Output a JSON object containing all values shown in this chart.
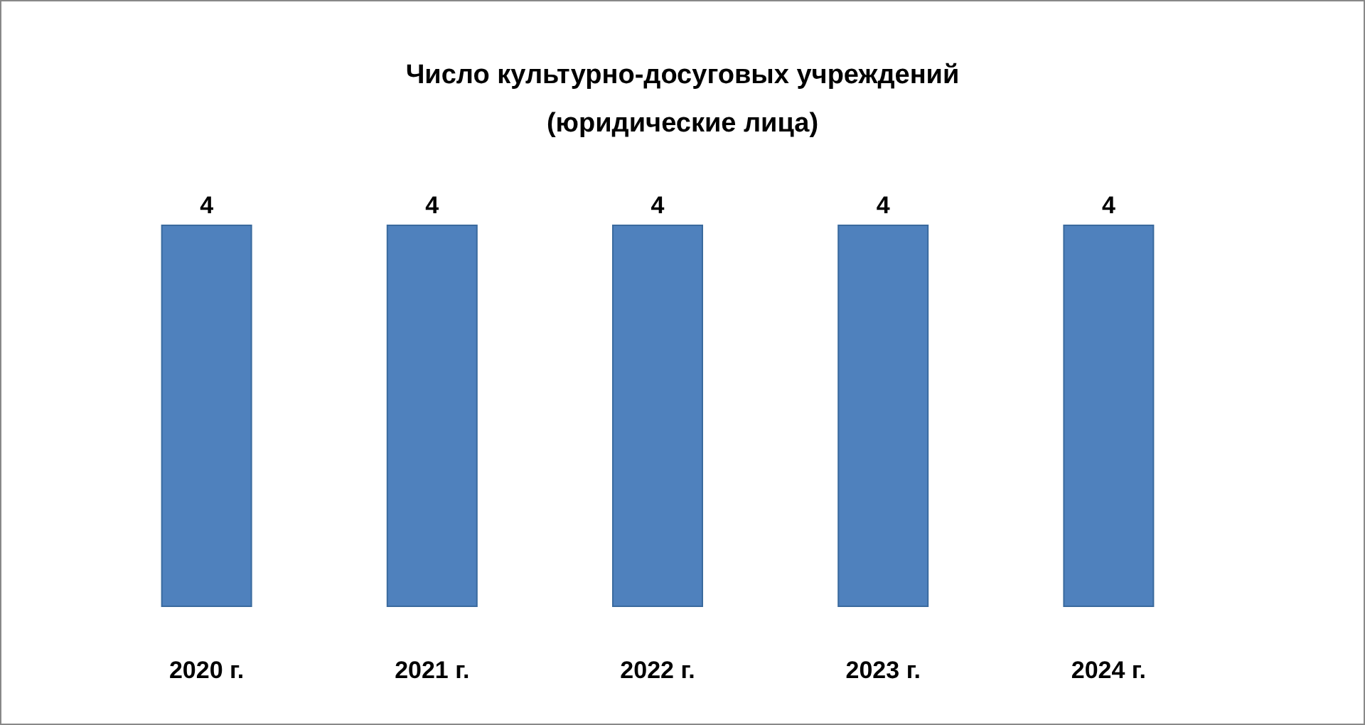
{
  "chart_data": {
    "type": "bar",
    "title": "Число культурно-досуговых учреждений\n(юридические лица)",
    "categories": [
      "2020 г.",
      "2021 г.",
      "2022 г.",
      "2023 г.",
      "2024 г."
    ],
    "values": [
      4,
      4,
      4,
      4,
      4
    ],
    "color": "#4f81bd",
    "data_labels": true
  }
}
